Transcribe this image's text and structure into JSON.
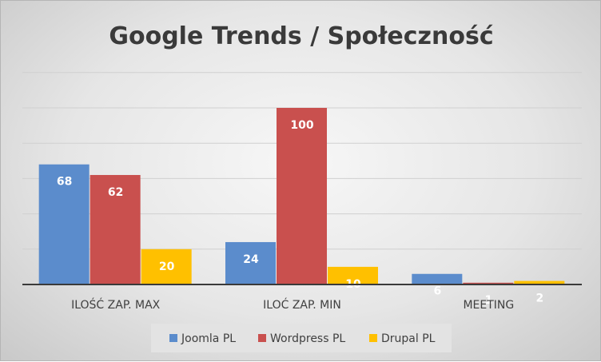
{
  "chart_data": {
    "type": "bar",
    "title": "Google Trends / Społeczność",
    "categories": [
      "ILOŚĆ ZAP. MAX",
      "ILOĆ ZAP. MIN",
      "MEETING"
    ],
    "series": [
      {
        "name": "Joomla PL",
        "values": [
          68,
          24,
          6
        ],
        "color": "#5b8ccc"
      },
      {
        "name": "Wordpress PL",
        "values": [
          62,
          100,
          1
        ],
        "color": "#c9504e"
      },
      {
        "name": "Drupal PL",
        "values": [
          20,
          10,
          2
        ],
        "color": "#ffc000"
      }
    ],
    "ylim": [
      0,
      100
    ],
    "grid": true,
    "legend_position": "bottom",
    "data_labels": true
  }
}
